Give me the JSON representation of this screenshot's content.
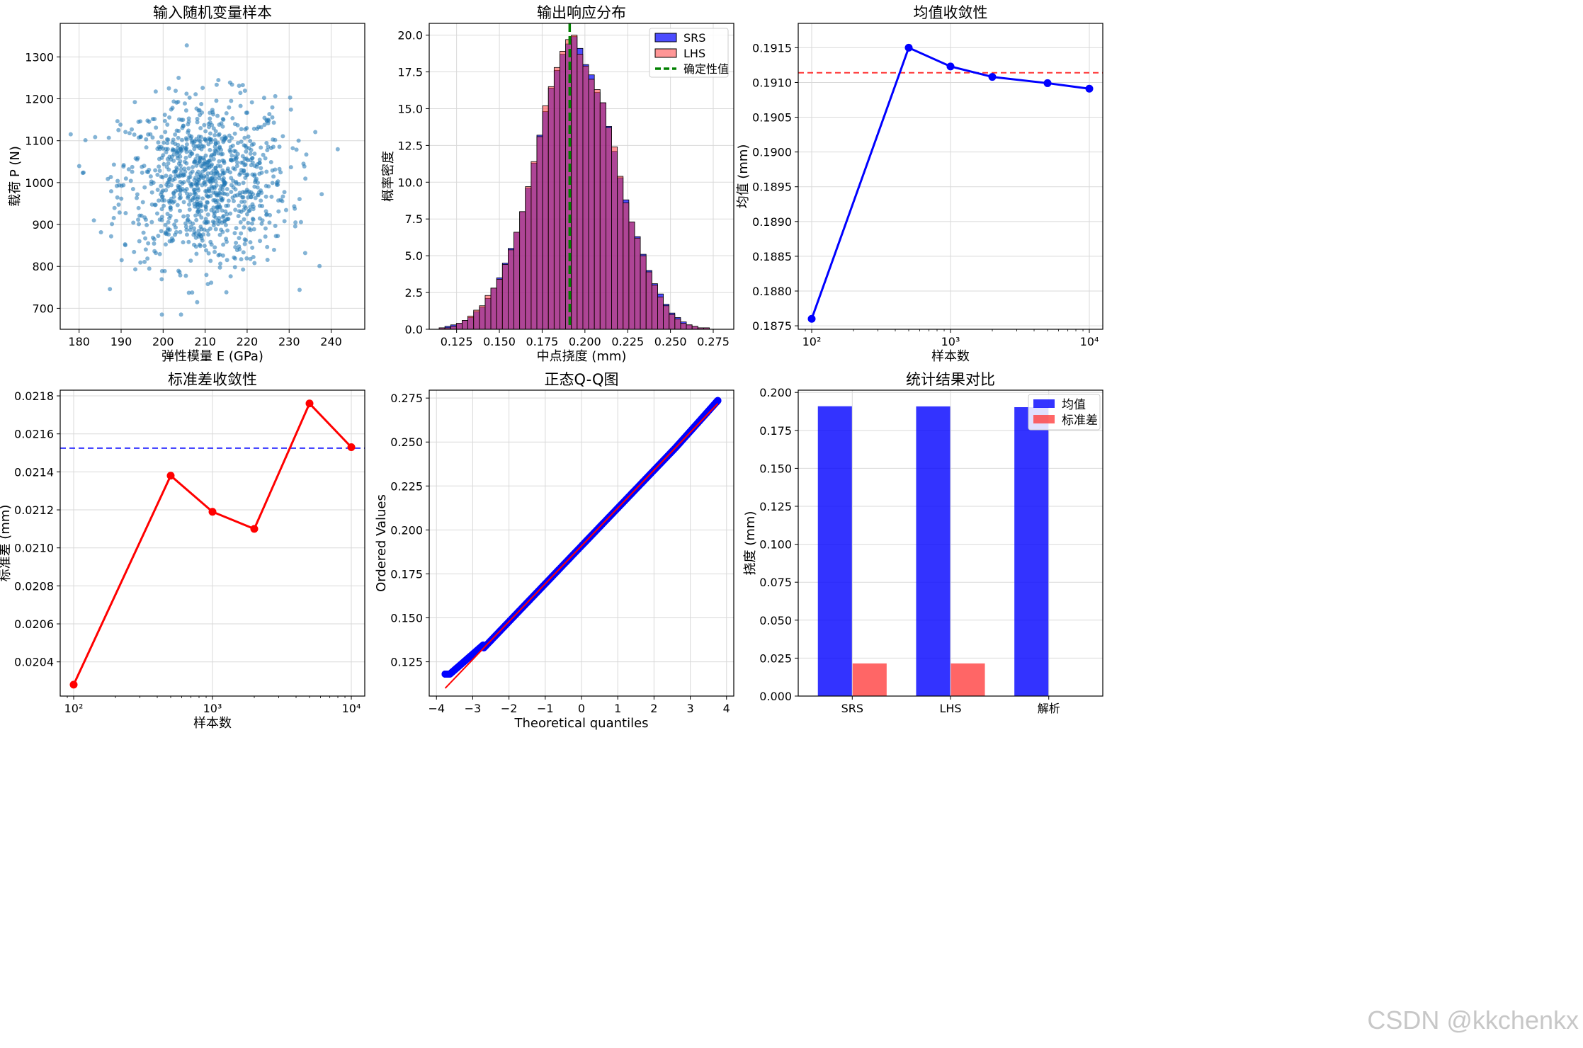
{
  "watermark": "CSDN @kkchenkx",
  "colors": {
    "scatter": "#1f77b4",
    "srs": "#0000ff",
    "lhs": "#ff4040",
    "hist_edge": "#000000",
    "det_line": "#008000",
    "mean_line": "#0000ff",
    "mean_ref": "#ff0000",
    "std_line": "#ff0000",
    "std_ref": "#0000ff",
    "qq_points": "#0000ff",
    "qq_line": "#ff0000",
    "grid": "#d9d9d9"
  },
  "chart_data": [
    {
      "id": "scatter",
      "type": "scatter",
      "title": "输入随机变量样本",
      "xlabel": "弹性模量 E (GPa)",
      "ylabel": "载荷 P (N)",
      "xlim": [
        175.5,
        248
      ],
      "ylim": [
        650,
        1380
      ],
      "xticks": [
        180,
        190,
        200,
        210,
        220,
        230,
        240
      ],
      "yticks": [
        700,
        800,
        900,
        1000,
        1100,
        1200,
        1300
      ],
      "n_points": 1000,
      "mean": [
        210,
        1000
      ],
      "std": [
        10,
        100
      ],
      "xlim_samples": [
        178,
        245
      ],
      "ylim_samples": [
        685,
        1348
      ]
    },
    {
      "id": "hist",
      "type": "bar",
      "title": "输出响应分布",
      "xlabel": "中点挠度 (mm)",
      "ylabel": "概率密度",
      "xlim": [
        0.109,
        0.287
      ],
      "ylim": [
        0,
        20.8
      ],
      "xticks": [
        0.125,
        0.15,
        0.175,
        0.2,
        0.225,
        0.25,
        0.275
      ],
      "xtick_labels": [
        "0.125",
        "0.150",
        "0.175",
        "0.200",
        "0.225",
        "0.250",
        "0.275"
      ],
      "yticks": [
        0,
        2.5,
        5,
        7.5,
        10,
        12.5,
        15,
        17.5,
        20
      ],
      "ytick_labels": [
        "0.0",
        "2.5",
        "5.0",
        "7.5",
        "10.0",
        "12.5",
        "15.0",
        "17.5",
        "20.0"
      ],
      "series": [
        {
          "name": "SRS",
          "bin_start": 0.1148,
          "bin_width": 0.00336,
          "values": [
            0.1,
            0.2,
            0.3,
            0.4,
            0.6,
            0.8,
            1.2,
            1.5,
            2.1,
            2.8,
            3.5,
            4.5,
            5.5,
            6.6,
            8.0,
            9.6,
            11.3,
            13.2,
            14.8,
            16.4,
            17.6,
            18.7,
            19.4,
            19.9,
            19.1,
            18.0,
            17.3,
            16.1,
            15.4,
            13.8,
            12.1,
            10.3,
            8.8,
            7.3,
            6.3,
            5.1,
            4.0,
            3.1,
            2.4,
            1.7,
            1.1,
            0.8,
            0.5,
            0.3,
            0.2,
            0.1,
            0.1
          ]
        },
        {
          "name": "LHS",
          "bin_start": 0.1148,
          "bin_width": 0.00336,
          "values": [
            0.1,
            0.1,
            0.2,
            0.4,
            0.6,
            0.9,
            1.3,
            1.6,
            2.3,
            2.8,
            3.4,
            4.4,
            5.4,
            6.6,
            8.0,
            9.7,
            11.4,
            13.1,
            15.2,
            16.5,
            17.8,
            18.9,
            19.7,
            20.0,
            18.7,
            17.9,
            17.0,
            16.3,
            15.4,
            13.7,
            12.4,
            10.4,
            8.6,
            7.3,
            6.2,
            5.0,
            3.9,
            3.0,
            2.2,
            1.6,
            1.0,
            0.7,
            0.4,
            0.3,
            0.2,
            0.1,
            0.1
          ]
        }
      ],
      "vline": {
        "name": "确定性值",
        "x": 0.1911
      },
      "legend": [
        "SRS",
        "LHS",
        "确定性值"
      ],
      "legend_loc": "upper right"
    },
    {
      "id": "mean_conv",
      "type": "line",
      "title": "均值收敛性",
      "xlabel": "样本数",
      "ylabel": "均值 (mm)",
      "xscale": "log",
      "xlim": [
        80,
        12500
      ],
      "ylim": [
        0.18745,
        0.19185
      ],
      "x": [
        100,
        500,
        1000,
        2000,
        5000,
        10000
      ],
      "y": [
        0.1876,
        0.1915,
        0.19123,
        0.19108,
        0.19099,
        0.19091
      ],
      "hline": 0.19114,
      "xticks": [
        100,
        1000,
        10000
      ],
      "xtick_labels": [
        "10²",
        "10³",
        "10⁴"
      ],
      "yticks": [
        0.1875,
        0.188,
        0.1885,
        0.189,
        0.1895,
        0.19,
        0.1905,
        0.191,
        0.1915
      ],
      "ytick_labels": [
        "0.1875",
        "0.1880",
        "0.1885",
        "0.1890",
        "0.1895",
        "0.1900",
        "0.1905",
        "0.1910",
        "0.1915"
      ]
    },
    {
      "id": "std_conv",
      "type": "line",
      "title": "标准差收敛性",
      "xlabel": "样本数",
      "ylabel": "标准差 (mm)",
      "xscale": "log",
      "xlim": [
        80,
        12500
      ],
      "ylim": [
        0.02022,
        0.02183
      ],
      "x": [
        100,
        500,
        1000,
        2000,
        5000,
        10000
      ],
      "y": [
        0.02028,
        0.02138,
        0.02119,
        0.0211,
        0.02176,
        0.02153
      ],
      "hline": 0.021525,
      "xticks": [
        100,
        1000,
        10000
      ],
      "xtick_labels": [
        "10²",
        "10³",
        "10⁴"
      ],
      "yticks": [
        0.0204,
        0.0206,
        0.0208,
        0.021,
        0.0212,
        0.0214,
        0.0216,
        0.0218
      ],
      "ytick_labels": [
        "0.0204",
        "0.0206",
        "0.0208",
        "0.0210",
        "0.0212",
        "0.0214",
        "0.0216",
        "0.0218"
      ]
    },
    {
      "id": "qq",
      "type": "scatter",
      "title": "正态Q-Q图",
      "xlabel": "Theoretical quantiles",
      "ylabel": "Ordered Values",
      "xlim": [
        -4.2,
        4.2
      ],
      "ylim": [
        0.1055,
        0.2795
      ],
      "xticks": [
        -4,
        -3,
        -2,
        -1,
        0,
        1,
        2,
        3,
        4
      ],
      "xtick_labels": [
        "−4",
        "−3",
        "−2",
        "−1",
        "0",
        "1",
        "2",
        "3",
        "4"
      ],
      "yticks": [
        0.125,
        0.15,
        0.175,
        0.2,
        0.225,
        0.25,
        0.275
      ],
      "ytick_labels": [
        "0.125",
        "0.150",
        "0.175",
        "0.200",
        "0.225",
        "0.250",
        "0.275"
      ],
      "fit_line": {
        "slope": 0.02153,
        "intercept": 0.1909,
        "x_range": [
          -3.76,
          3.76
        ]
      },
      "points": {
        "n": 10000,
        "x_range": [
          -3.76,
          3.76
        ],
        "y_min": 0.118,
        "y_max": 0.274
      }
    },
    {
      "id": "compare",
      "type": "bar",
      "title": "统计结果对比",
      "xlabel": "",
      "ylabel": "挠度 (mm)",
      "categories": [
        "SRS",
        "LHS",
        "解析"
      ],
      "series": [
        {
          "name": "均值",
          "values": [
            0.1909,
            0.1908,
            0.1903
          ]
        },
        {
          "name": "标准差",
          "values": [
            0.0215,
            0.0215,
            0
          ]
        }
      ],
      "ylim": [
        0,
        0.2015
      ],
      "yticks": [
        0,
        0.025,
        0.05,
        0.075,
        0.1,
        0.125,
        0.15,
        0.175,
        0.2
      ],
      "ytick_labels": [
        "0.000",
        "0.025",
        "0.050",
        "0.075",
        "0.100",
        "0.125",
        "0.150",
        "0.175",
        "0.200"
      ],
      "legend_loc": "upper right"
    }
  ]
}
